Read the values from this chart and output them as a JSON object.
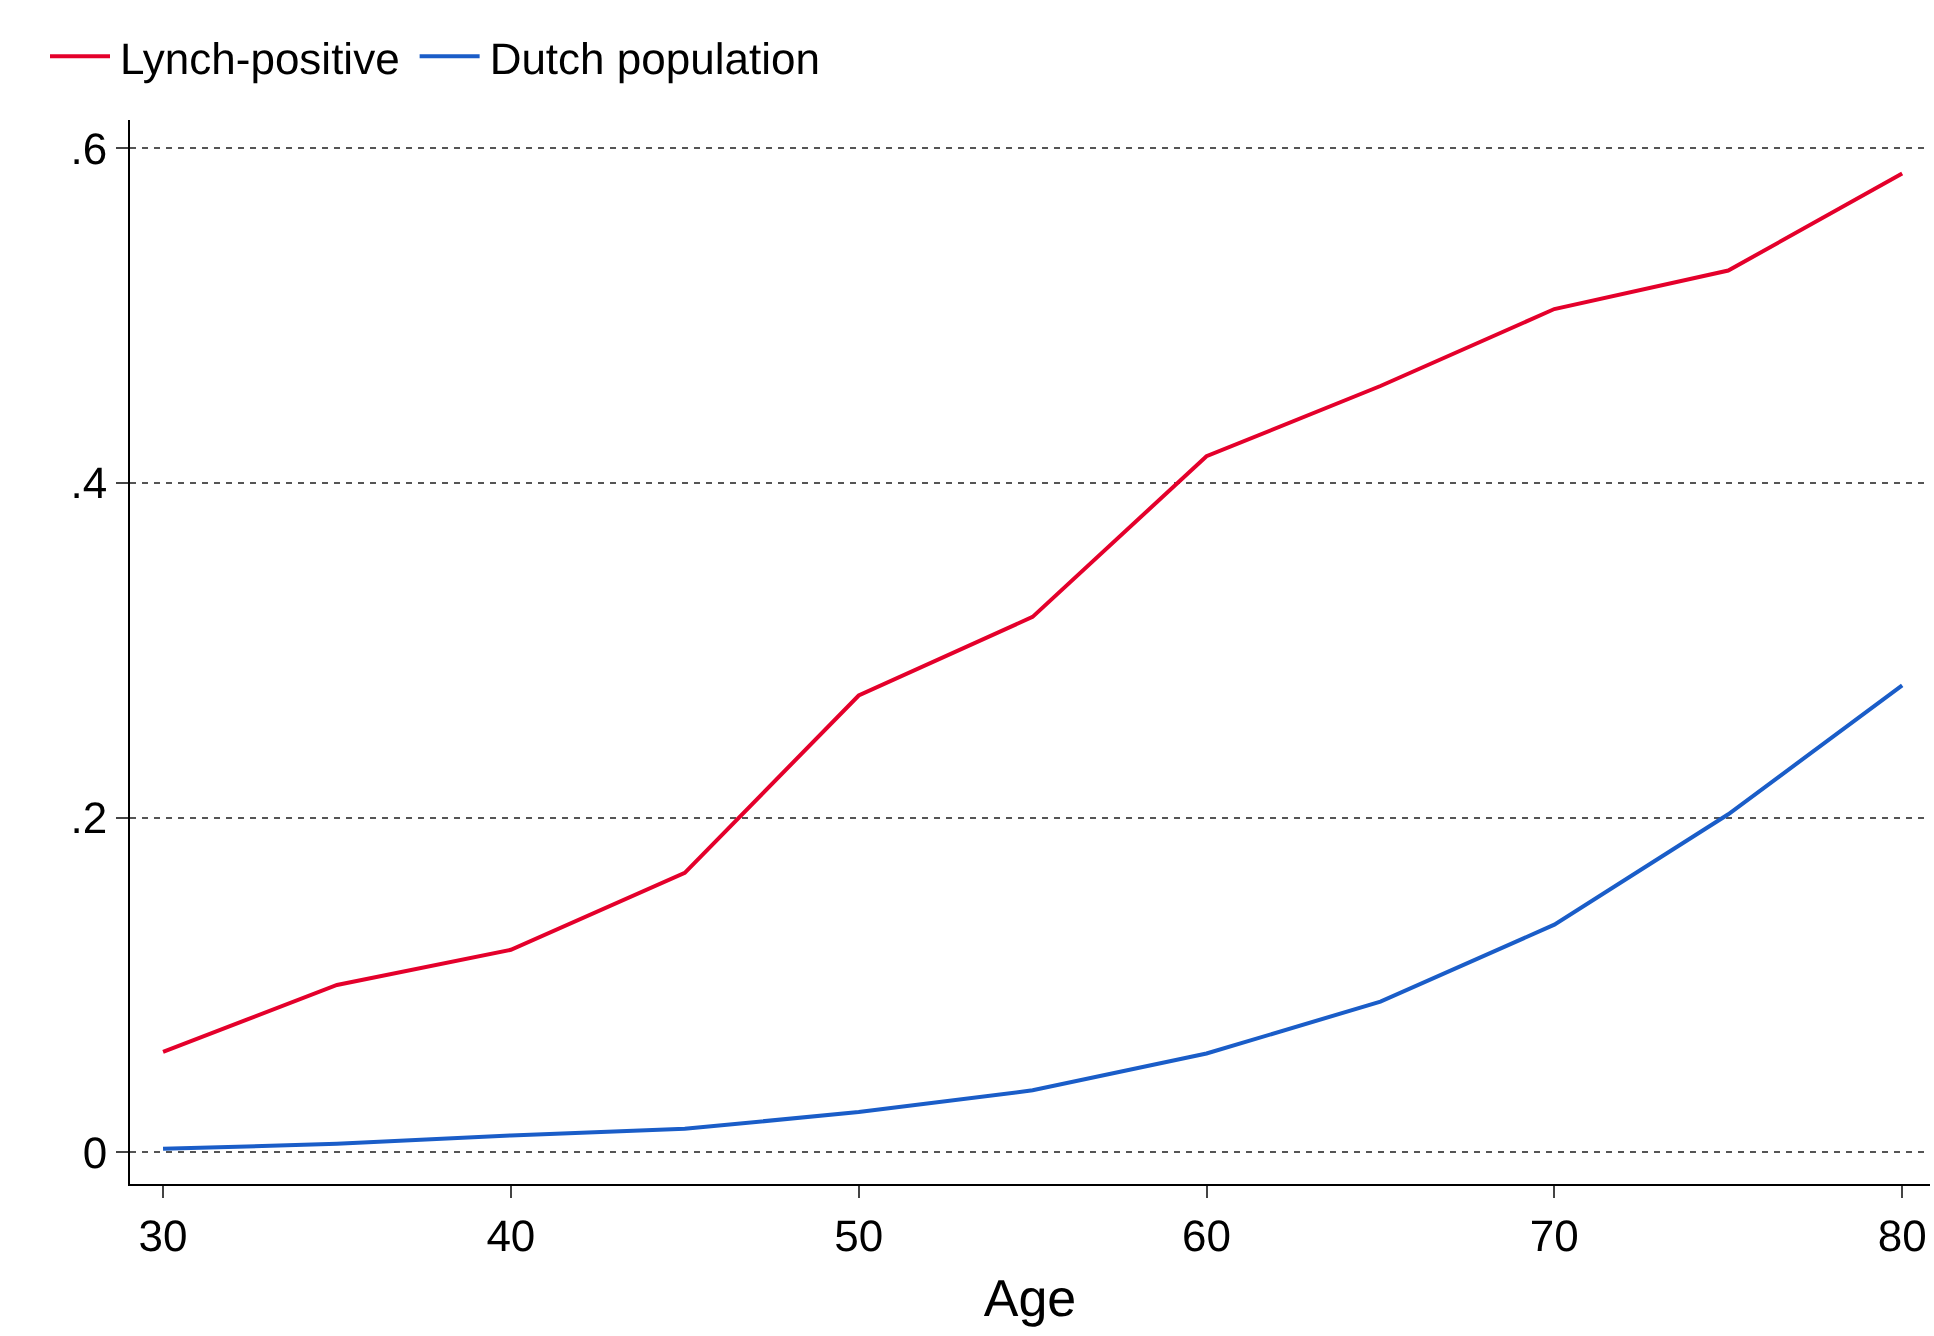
{
  "chart_data": {
    "type": "line",
    "xlabel": "Age",
    "x": [
      30,
      35,
      40,
      45,
      50,
      55,
      60,
      65,
      70,
      75,
      80
    ],
    "series": [
      {
        "name": "Lynch-positive",
        "color": "#e4002b",
        "values": [
          0.06,
          0.1,
          0.121,
          0.167,
          0.273,
          0.32,
          0.416,
          0.458,
          0.504,
          0.527,
          0.585
        ]
      },
      {
        "name": "Dutch population",
        "color": "#1a5dc8",
        "values": [
          0.002,
          0.005,
          0.01,
          0.014,
          0.024,
          0.037,
          0.059,
          0.09,
          0.136,
          0.202,
          0.279
        ]
      }
    ],
    "xlim": [
      29.05,
      80.8
    ],
    "ylim": [
      -0.019,
      0.617
    ],
    "xticks": [
      30,
      40,
      50,
      60,
      70,
      80
    ],
    "yticks": [
      {
        "value": 0,
        "label": "0"
      },
      {
        "value": 0.2,
        "label": ".2"
      },
      {
        "value": 0.4,
        "label": ".4"
      },
      {
        "value": 0.6,
        "label": ".6"
      }
    ],
    "grid": "y",
    "legend": "top left",
    "marker": "none",
    "line_style": "solid"
  }
}
